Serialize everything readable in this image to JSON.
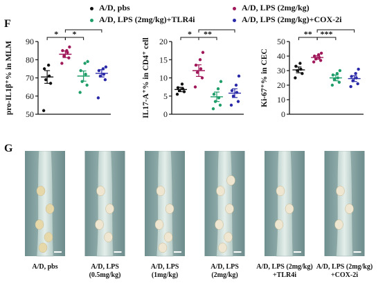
{
  "legend": [
    {
      "label": "A/D, pbs",
      "color": "#111111"
    },
    {
      "label": "A/D, LPS (2mg/kg)",
      "color": "#a0185a"
    },
    {
      "label": "A/D, LPS (2mg/kg)+TLR4i",
      "color": "#1f9e6a"
    },
    {
      "label": "A/D, LPS (2mg/kg)+COX-2i",
      "color": "#2a2aa8"
    }
  ],
  "panel_f_letter": "F",
  "panel_g_letter": "G",
  "chart_data": [
    {
      "type": "scatter",
      "ylabel": "pro-IL1β⁺% in MLM",
      "ylim": [
        50,
        90
      ],
      "yticks": [
        "50",
        "60",
        "70",
        "80",
        "90"
      ],
      "groups": [
        {
          "name": "A/D, pbs",
          "color": "#111111",
          "mean": 70.5,
          "sem": 3.5,
          "values": [
            52,
            67,
            69,
            71,
            75,
            77
          ]
        },
        {
          "name": "A/D, LPS (2mg/kg)",
          "color": "#a0185a",
          "mean": 83,
          "sem": 1.8,
          "values": [
            78,
            81,
            82,
            84,
            85,
            85,
            87
          ]
        },
        {
          "name": "A/D, LPS (2mg/kg)+TLR4i",
          "color": "#1f9e6a",
          "mean": 71,
          "sem": 2.8,
          "values": [
            62,
            66,
            68,
            72,
            74,
            78,
            79
          ]
        },
        {
          "name": "A/D, LPS (2mg/kg)+COX-2i",
          "color": "#2a2aa8",
          "mean": 72.5,
          "sem": 2.0,
          "values": [
            59,
            69,
            71,
            72,
            74,
            75,
            76
          ]
        }
      ],
      "significance": [
        {
          "from": 0,
          "to": 1,
          "label": "*",
          "level": 1
        },
        {
          "from": 1,
          "to": 2,
          "label": "*",
          "level": 1
        },
        {
          "from": 1,
          "to": 3,
          "label": "*",
          "level": 2
        }
      ]
    },
    {
      "type": "scatter",
      "ylabel": "IL17-A⁺% in CD4⁺ cell",
      "ylim": [
        0,
        20
      ],
      "yticks": [
        "0",
        "5",
        "10",
        "15",
        "20"
      ],
      "groups": [
        {
          "name": "A/D, pbs",
          "color": "#111111",
          "mean": 6.8,
          "sem": 0.6,
          "values": [
            5.5,
            6.2,
            6.5,
            7.0,
            7.3,
            8.3
          ]
        },
        {
          "name": "A/D, LPS (2mg/kg)",
          "color": "#a0185a",
          "mean": 12,
          "sem": 1.6,
          "values": [
            7.5,
            10,
            11.5,
            12.5,
            13.5,
            15,
            17
          ]
        },
        {
          "name": "A/D, LPS (2mg/kg)+TLR4i",
          "color": "#1f9e6a",
          "mean": 4.8,
          "sem": 1.3,
          "values": [
            1.5,
            2.5,
            3.5,
            4.5,
            5.5,
            7,
            9
          ]
        },
        {
          "name": "A/D, LPS (2mg/kg)+COX-2i",
          "color": "#2a2aa8",
          "mean": 5.8,
          "sem": 1.2,
          "values": [
            2.5,
            3.5,
            5,
            6,
            6.5,
            8,
            10.5
          ]
        }
      ],
      "significance": [
        {
          "from": 0,
          "to": 1,
          "label": "*",
          "level": 1
        },
        {
          "from": 1,
          "to": 2,
          "label": "**",
          "level": 1
        },
        {
          "from": 1,
          "to": 3,
          "label": "**",
          "level": 2
        }
      ]
    },
    {
      "type": "scatter",
      "ylabel": "Ki-67⁺% in CEC",
      "ylim": [
        0,
        50
      ],
      "yticks": [
        "0",
        "10",
        "20",
        "30",
        "40",
        "50"
      ],
      "groups": [
        {
          "name": "A/D, pbs",
          "color": "#111111",
          "mean": 30.5,
          "sem": 2.0,
          "values": [
            25,
            28,
            30,
            31,
            33,
            35
          ]
        },
        {
          "name": "A/D, LPS (2mg/kg)",
          "color": "#a0185a",
          "mean": 39,
          "sem": 1.2,
          "values": [
            36,
            37,
            38,
            39,
            40,
            41,
            42
          ]
        },
        {
          "name": "A/D, LPS (2mg/kg)+TLR4i",
          "color": "#1f9e6a",
          "mean": 25,
          "sem": 2.0,
          "values": [
            20,
            22,
            24,
            25,
            27,
            28,
            30
          ]
        },
        {
          "name": "A/D, LPS (2mg/kg)+COX-2i",
          "color": "#2a2aa8",
          "mean": 24.5,
          "sem": 2.0,
          "values": [
            19,
            21,
            23,
            25,
            26,
            28,
            31
          ]
        }
      ],
      "significance": [
        {
          "from": 0,
          "to": 1,
          "label": "**",
          "level": 1
        },
        {
          "from": 1,
          "to": 2,
          "label": "***",
          "level": 1
        },
        {
          "from": 1,
          "to": 3,
          "label": "***",
          "level": 2
        }
      ]
    }
  ],
  "photos": [
    {
      "caption_lines": [
        "A/D, pbs"
      ],
      "nodules": 5
    },
    {
      "caption_lines": [
        "A/D, LPS",
        "(0.5mg/kg)"
      ],
      "nodules": 4
    },
    {
      "caption_lines": [
        "A/D, LPS",
        "(1mg/kg)"
      ],
      "nodules": 5
    },
    {
      "caption_lines": [
        "A/D, LPS",
        "(2mg/kg)"
      ],
      "nodules": 6
    },
    {
      "caption_lines": [
        "A/D, LPS (2mg/kg)",
        "+TLR4i"
      ],
      "nodules": 3
    },
    {
      "caption_lines": [
        "A/D, LPS (2mg/kg)",
        "+COX-2i"
      ],
      "nodules": 3
    }
  ]
}
